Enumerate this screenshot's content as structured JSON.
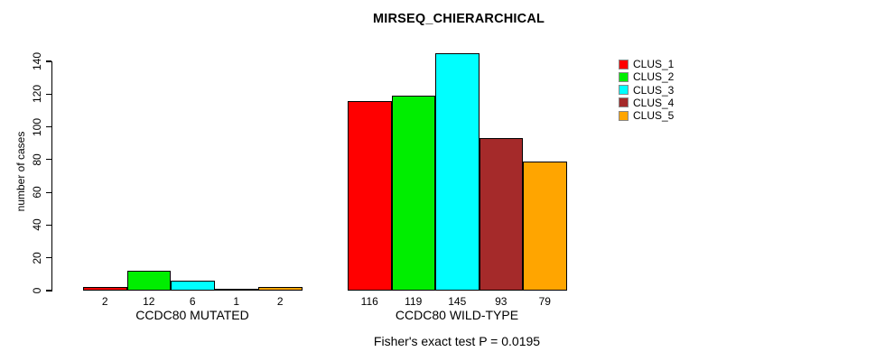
{
  "chart_data": {
    "type": "bar",
    "title": "MIRSEQ_CHIERARCHICAL",
    "ylabel": "number of cases",
    "xlabel": "",
    "ylim": [
      0,
      145
    ],
    "yticks": [
      0,
      20,
      40,
      60,
      80,
      100,
      120,
      140
    ],
    "grid": false,
    "legend_position": "top-right",
    "categories": [
      "CCDC80 MUTATED",
      "CCDC80 WILD-TYPE"
    ],
    "series": [
      {
        "name": "CLUS_1",
        "color": "#FF0000",
        "values": [
          2,
          116
        ]
      },
      {
        "name": "CLUS_2",
        "color": "#00EE00",
        "values": [
          12,
          119
        ]
      },
      {
        "name": "CLUS_3",
        "color": "#00FFFF",
        "values": [
          6,
          145
        ]
      },
      {
        "name": "CLUS_4",
        "color": "#A52A2A",
        "values": [
          1,
          93
        ]
      },
      {
        "name": "CLUS_5",
        "color": "#FFA500",
        "values": [
          2,
          79
        ]
      }
    ],
    "annotation": "Fisher's exact test P = 0.0195"
  }
}
